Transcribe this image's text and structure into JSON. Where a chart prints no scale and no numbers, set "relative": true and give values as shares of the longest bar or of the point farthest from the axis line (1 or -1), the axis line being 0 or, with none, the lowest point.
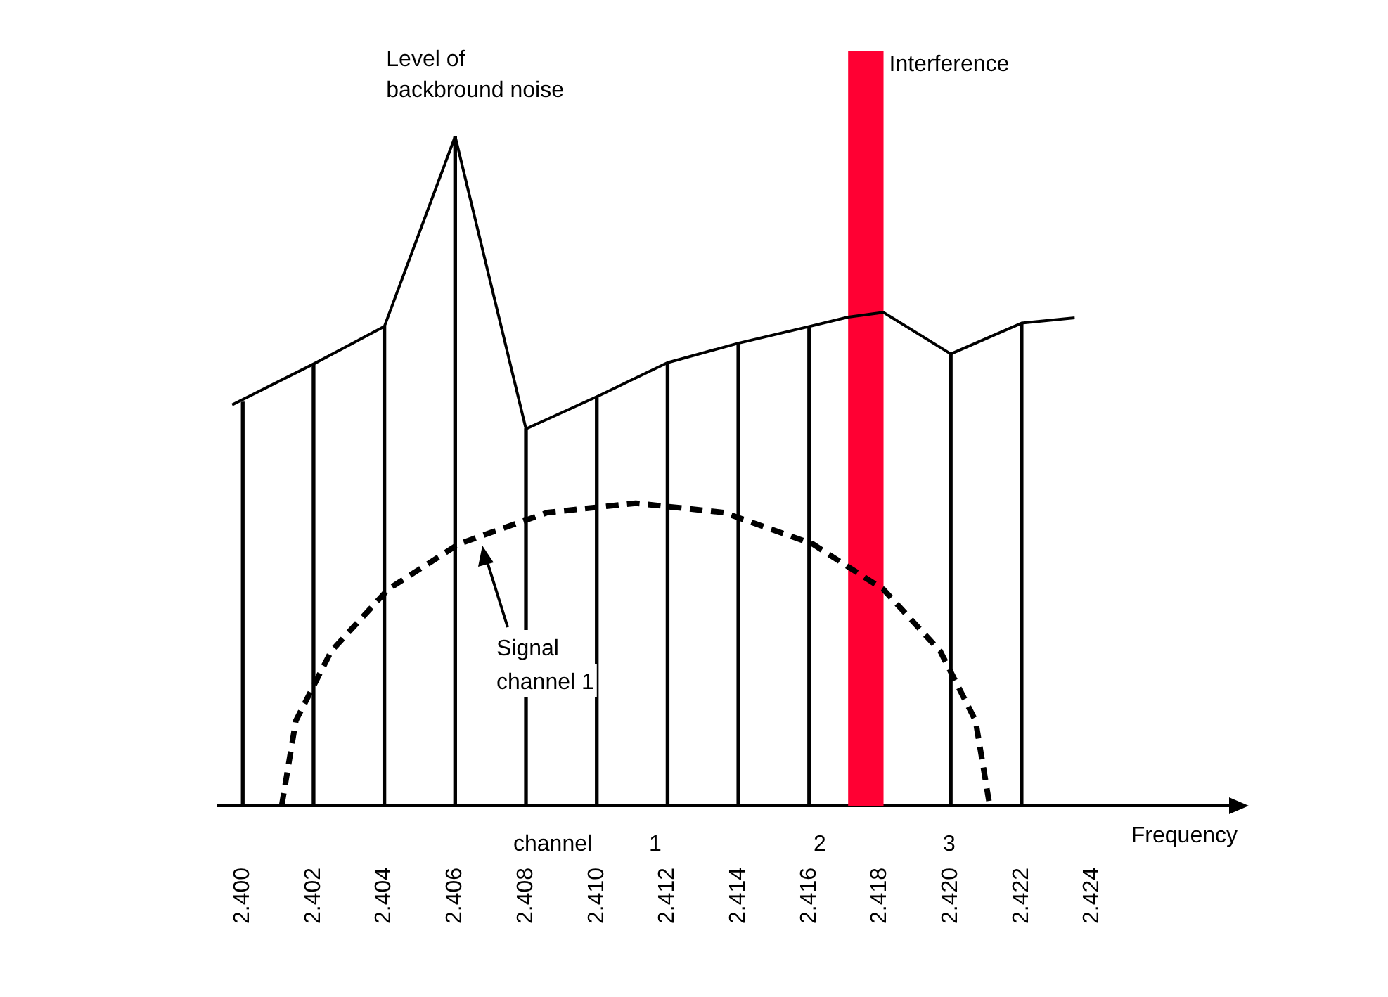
{
  "chart_data": {
    "type": "line",
    "relative": true,
    "xlabel": "Frequency",
    "xlim": [
      2.3993,
      2.4281
    ],
    "xticks": [
      {
        "value": 2.4,
        "label": "2.400"
      },
      {
        "value": 2.402,
        "label": "2.402"
      },
      {
        "value": 2.404,
        "label": "2.404"
      },
      {
        "value": 2.406,
        "label": "2.406"
      },
      {
        "value": 2.408,
        "label": "2.408"
      },
      {
        "value": 2.41,
        "label": "2.410"
      },
      {
        "value": 2.412,
        "label": "2.412"
      },
      {
        "value": 2.414,
        "label": "2.414"
      },
      {
        "value": 2.416,
        "label": "2.416"
      },
      {
        "value": 2.418,
        "label": "2.418"
      },
      {
        "value": 2.42,
        "label": "2.420"
      },
      {
        "value": 2.422,
        "label": "2.422"
      },
      {
        "value": 2.424,
        "label": "2.424"
      }
    ],
    "series": [
      {
        "color": "#000000",
        "x": [
          2.3997,
          2.402,
          2.404,
          2.406,
          2.408,
          2.41,
          2.412,
          2.414,
          2.416,
          2.4171,
          2.4181,
          2.42,
          2.422,
          2.4235
        ],
        "values": [
          0.599,
          0.66,
          0.716,
          1,
          0.563,
          0.611,
          0.662,
          0.691,
          0.716,
          0.73,
          0.737,
          0.675,
          0.721,
          0.729
        ]
      },
      {
        "type": "bar",
        "color": "#000000",
        "x": [
          2.4,
          2.402,
          2.404,
          2.406,
          2.408,
          2.41,
          2.412,
          2.414,
          2.416,
          2.42,
          2.422
        ],
        "values": [
          0.603,
          0.66,
          0.716,
          1,
          0.563,
          0.611,
          0.662,
          0.691,
          0.716,
          0.675,
          0.721
        ]
      },
      {
        "type": "line",
        "line_style": "dashed",
        "color": "#000000",
        "x": [
          2.4011,
          2.4015,
          2.4025,
          2.4041,
          2.4061,
          2.4086,
          2.4111,
          2.4136,
          2.4161,
          2.4181,
          2.4197,
          2.4207,
          2.4211
        ],
        "values": [
          0,
          0.127,
          0.231,
          0.323,
          0.391,
          0.438,
          0.452,
          0.438,
          0.391,
          0.323,
          0.231,
          0.127,
          0
        ]
      }
    ],
    "bands": [
      {
        "axis": "x",
        "from": 2.4171,
        "to": 2.4181,
        "label": "Interference",
        "color": "#ff0033"
      }
    ],
    "annotations": [
      {
        "text": "Level of\nbackbround noise",
        "x": 2.406,
        "y": 1
      },
      "Signal\nchannel 1",
      "channel",
      "1",
      "2",
      "3"
    ],
    "marker": "none",
    "grid": false,
    "legend": false
  }
}
